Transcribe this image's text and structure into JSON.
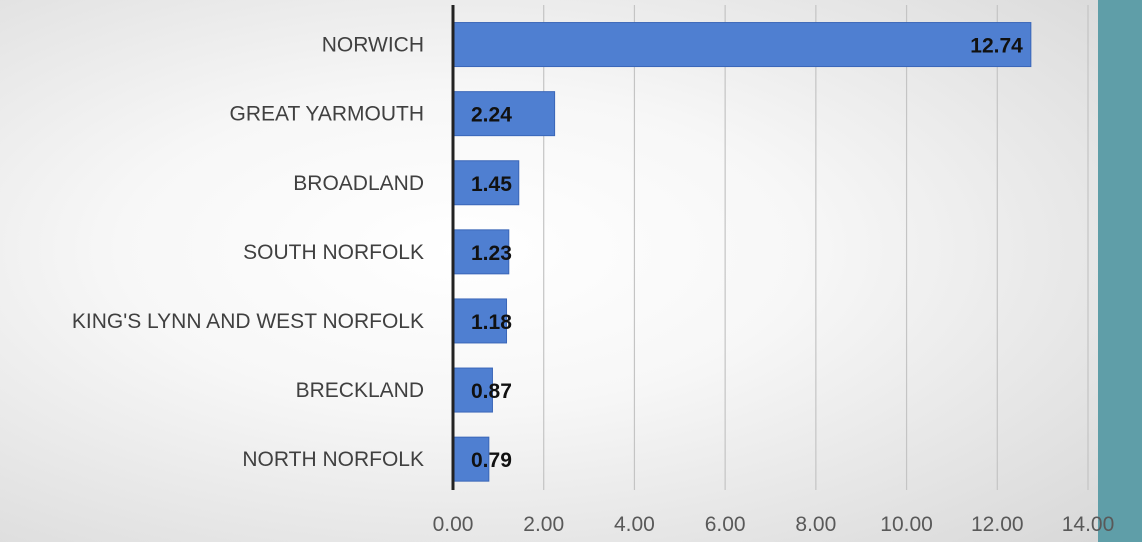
{
  "chart_data": {
    "type": "bar",
    "orientation": "horizontal",
    "title": "",
    "xlabel": "",
    "ylabel": "",
    "categories": [
      "NORWICH",
      "GREAT YARMOUTH",
      "BROADLAND",
      "SOUTH NORFOLK",
      "KING'S LYNN AND WEST NORFOLK",
      "BRECKLAND",
      "NORTH NORFOLK"
    ],
    "values": [
      12.74,
      2.24,
      1.45,
      1.23,
      1.18,
      0.87,
      0.79
    ],
    "data_labels": [
      "12.74",
      "2.24",
      "1.45",
      "1.23",
      "1.18",
      "0.87",
      "0.79"
    ],
    "xlim": [
      0,
      14
    ],
    "x_ticks": [
      "0.00",
      "2.00",
      "4.00",
      "6.00",
      "8.00",
      "10.00",
      "12.00",
      "14.00"
    ],
    "grid": "vertical",
    "legend": "none",
    "colors": {
      "bar": "#4f7fd1",
      "bar_edge": "#3a66b8",
      "grid": "#c4c4c4",
      "axis": "#222222",
      "background_frame": "#5f9ea8"
    }
  }
}
